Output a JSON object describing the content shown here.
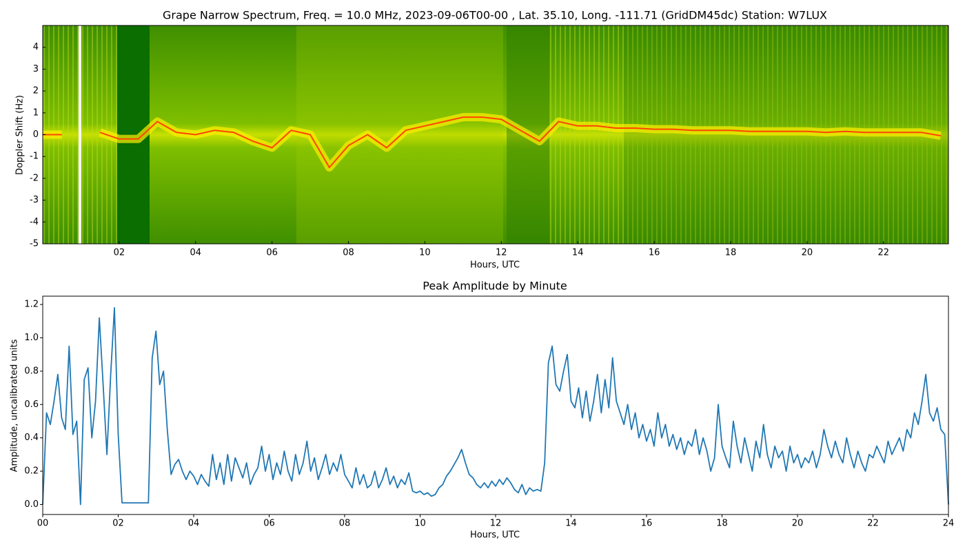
{
  "chart_data": [
    {
      "type": "spectrogram",
      "title": "Grape Narrow Spectrum, Freq. = 10.0 MHz, 2023-09-06T00-00 , Lat.  35.10, Long. -111.71 (GridDM45dc) Station: W7LUX",
      "x_label": "Hours, UTC",
      "y_label": "Doppler Shift (Hz)",
      "x": [
        0,
        0.5,
        1,
        1.5,
        2,
        2.5,
        3,
        3.5,
        4,
        4.5,
        5,
        5.5,
        6,
        6.5,
        7,
        7.5,
        8,
        8.5,
        9,
        9.5,
        10,
        10.5,
        11,
        11.5,
        12,
        12.5,
        13,
        13.5,
        14,
        14.5,
        15,
        15.5,
        16,
        16.5,
        17,
        17.5,
        18,
        18.5,
        19,
        19.5,
        20,
        20.5,
        21,
        21.5,
        22,
        22.5,
        23,
        23.5
      ],
      "values": [
        0.0,
        0.0,
        null,
        0.1,
        -0.2,
        -0.2,
        0.6,
        0.1,
        0.0,
        0.2,
        0.1,
        -0.3,
        -0.6,
        0.2,
        0.0,
        -1.5,
        -0.5,
        0.0,
        -0.6,
        0.2,
        0.4,
        0.6,
        0.8,
        0.8,
        0.7,
        0.2,
        -0.3,
        0.6,
        0.4,
        0.4,
        0.3,
        0.3,
        0.25,
        0.25,
        0.2,
        0.2,
        0.2,
        0.15,
        0.15,
        0.15,
        0.15,
        0.1,
        0.15,
        0.1,
        0.1,
        0.1,
        0.1,
        -0.05
      ],
      "color": "#ff4500",
      "xlim": [
        0,
        23.7
      ],
      "ylim": [
        -5,
        5
      ],
      "xticks": [
        {
          "value": 2,
          "label": "02"
        },
        {
          "value": 4,
          "label": "04"
        },
        {
          "value": 6,
          "label": "06"
        },
        {
          "value": 8,
          "label": "08"
        },
        {
          "value": 10,
          "label": "10"
        },
        {
          "value": 12,
          "label": "12"
        },
        {
          "value": 14,
          "label": "14"
        },
        {
          "value": 16,
          "label": "16"
        },
        {
          "value": 18,
          "label": "18"
        },
        {
          "value": 20,
          "label": "20"
        },
        {
          "value": 22,
          "label": "22"
        }
      ],
      "yticks": [
        -5,
        -4,
        -3,
        -2,
        -1,
        0,
        1,
        2,
        3,
        4
      ]
    },
    {
      "type": "line",
      "title": "Peak Amplitude by Minute",
      "x_label": "Hours, UTC",
      "y_label": "Amplitude, uncalibrated units",
      "x": [
        0,
        0.1,
        0.2,
        0.3,
        0.4,
        0.5,
        0.6,
        0.7,
        0.8,
        0.9,
        1,
        1.1,
        1.2,
        1.3,
        1.4,
        1.5,
        1.6,
        1.7,
        1.8,
        1.9,
        2,
        2.1,
        2.2,
        2.3,
        2.4,
        2.5,
        2.6,
        2.7,
        2.8,
        2.9,
        3,
        3.1,
        3.2,
        3.3,
        3.4,
        3.5,
        3.6,
        3.7,
        3.8,
        3.9,
        4,
        4.1,
        4.2,
        4.3,
        4.4,
        4.5,
        4.6,
        4.7,
        4.8,
        4.9,
        5,
        5.1,
        5.2,
        5.3,
        5.4,
        5.5,
        5.6,
        5.7,
        5.8,
        5.9,
        6,
        6.1,
        6.2,
        6.3,
        6.4,
        6.5,
        6.6,
        6.7,
        6.8,
        6.9,
        7,
        7.1,
        7.2,
        7.3,
        7.4,
        7.5,
        7.6,
        7.7,
        7.8,
        7.9,
        8,
        8.1,
        8.2,
        8.3,
        8.4,
        8.5,
        8.6,
        8.7,
        8.8,
        8.9,
        9,
        9.1,
        9.2,
        9.3,
        9.4,
        9.5,
        9.6,
        9.7,
        9.8,
        9.9,
        10,
        10.1,
        10.2,
        10.3,
        10.4,
        10.5,
        10.6,
        10.7,
        10.8,
        10.9,
        11,
        11.1,
        11.2,
        11.3,
        11.4,
        11.5,
        11.6,
        11.7,
        11.8,
        11.9,
        12,
        12.1,
        12.2,
        12.3,
        12.4,
        12.5,
        12.6,
        12.7,
        12.8,
        12.9,
        13,
        13.1,
        13.2,
        13.3,
        13.4,
        13.5,
        13.6,
        13.7,
        13.8,
        13.9,
        14,
        14.1,
        14.2,
        14.3,
        14.4,
        14.5,
        14.6,
        14.7,
        14.8,
        14.9,
        15,
        15.1,
        15.2,
        15.3,
        15.4,
        15.5,
        15.6,
        15.7,
        15.8,
        15.9,
        16,
        16.1,
        16.2,
        16.3,
        16.4,
        16.5,
        16.6,
        16.7,
        16.8,
        16.9,
        17,
        17.1,
        17.2,
        17.3,
        17.4,
        17.5,
        17.6,
        17.7,
        17.8,
        17.9,
        18,
        18.1,
        18.2,
        18.3,
        18.4,
        18.5,
        18.6,
        18.7,
        18.8,
        18.9,
        19,
        19.1,
        19.2,
        19.3,
        19.4,
        19.5,
        19.6,
        19.7,
        19.8,
        19.9,
        20,
        20.1,
        20.2,
        20.3,
        20.4,
        20.5,
        20.6,
        20.7,
        20.8,
        20.9,
        21,
        21.1,
        21.2,
        21.3,
        21.4,
        21.5,
        21.6,
        21.7,
        21.8,
        21.9,
        22,
        22.1,
        22.2,
        22.3,
        22.4,
        22.5,
        22.6,
        22.7,
        22.8,
        22.9,
        23,
        23.1,
        23.2,
        23.3,
        23.4,
        23.5,
        23.6,
        23.7,
        23.8,
        23.9,
        24
      ],
      "values": [
        0.0,
        0.55,
        0.48,
        0.62,
        0.78,
        0.52,
        0.45,
        0.95,
        0.42,
        0.5,
        0.0,
        0.75,
        0.82,
        0.4,
        0.62,
        1.12,
        0.72,
        0.3,
        0.78,
        1.18,
        0.42,
        0.01,
        0.01,
        0.01,
        0.01,
        0.01,
        0.01,
        0.01,
        0.01,
        0.88,
        1.04,
        0.72,
        0.8,
        0.45,
        0.18,
        0.24,
        0.27,
        0.2,
        0.15,
        0.2,
        0.17,
        0.12,
        0.18,
        0.14,
        0.11,
        0.3,
        0.15,
        0.25,
        0.12,
        0.3,
        0.14,
        0.28,
        0.22,
        0.16,
        0.25,
        0.12,
        0.18,
        0.22,
        0.35,
        0.2,
        0.3,
        0.15,
        0.25,
        0.18,
        0.32,
        0.2,
        0.14,
        0.3,
        0.18,
        0.25,
        0.38,
        0.2,
        0.28,
        0.15,
        0.22,
        0.3,
        0.18,
        0.25,
        0.2,
        0.3,
        0.18,
        0.14,
        0.1,
        0.22,
        0.12,
        0.18,
        0.1,
        0.12,
        0.2,
        0.1,
        0.15,
        0.22,
        0.12,
        0.17,
        0.1,
        0.15,
        0.12,
        0.19,
        0.08,
        0.07,
        0.08,
        0.06,
        0.07,
        0.05,
        0.06,
        0.1,
        0.12,
        0.17,
        0.2,
        0.24,
        0.28,
        0.33,
        0.25,
        0.18,
        0.16,
        0.12,
        0.1,
        0.13,
        0.1,
        0.14,
        0.11,
        0.15,
        0.12,
        0.16,
        0.13,
        0.09,
        0.07,
        0.12,
        0.06,
        0.1,
        0.08,
        0.09,
        0.08,
        0.25,
        0.85,
        0.95,
        0.72,
        0.68,
        0.8,
        0.9,
        0.62,
        0.58,
        0.7,
        0.52,
        0.68,
        0.5,
        0.62,
        0.78,
        0.55,
        0.75,
        0.58,
        0.88,
        0.62,
        0.55,
        0.48,
        0.6,
        0.45,
        0.55,
        0.4,
        0.48,
        0.38,
        0.45,
        0.35,
        0.55,
        0.4,
        0.48,
        0.35,
        0.42,
        0.33,
        0.4,
        0.3,
        0.38,
        0.35,
        0.45,
        0.3,
        0.4,
        0.32,
        0.2,
        0.28,
        0.6,
        0.35,
        0.28,
        0.22,
        0.5,
        0.35,
        0.25,
        0.4,
        0.3,
        0.2,
        0.38,
        0.28,
        0.48,
        0.3,
        0.22,
        0.35,
        0.28,
        0.32,
        0.2,
        0.35,
        0.25,
        0.3,
        0.22,
        0.28,
        0.25,
        0.32,
        0.22,
        0.3,
        0.45,
        0.35,
        0.28,
        0.38,
        0.3,
        0.25,
        0.4,
        0.3,
        0.22,
        0.32,
        0.25,
        0.2,
        0.3,
        0.28,
        0.35,
        0.3,
        0.25,
        0.38,
        0.3,
        0.35,
        0.4,
        0.32,
        0.45,
        0.4,
        0.55,
        0.48,
        0.62,
        0.78,
        0.55,
        0.5,
        0.58,
        0.45,
        0.42,
        0.0
      ],
      "color": "#1f77b4",
      "xlim": [
        0,
        24
      ],
      "ylim": [
        -0.06,
        1.25
      ],
      "xticks": [
        {
          "value": 0,
          "label": "00"
        },
        {
          "value": 2,
          "label": "02"
        },
        {
          "value": 4,
          "label": "04"
        },
        {
          "value": 6,
          "label": "06"
        },
        {
          "value": 8,
          "label": "08"
        },
        {
          "value": 10,
          "label": "10"
        },
        {
          "value": 12,
          "label": "12"
        },
        {
          "value": 14,
          "label": "14"
        },
        {
          "value": 16,
          "label": "16"
        },
        {
          "value": 18,
          "label": "18"
        },
        {
          "value": 20,
          "label": "20"
        },
        {
          "value": 22,
          "label": "22"
        },
        {
          "value": 24,
          "label": "24"
        }
      ],
      "yticks": [
        {
          "value": 0,
          "label": "0.0"
        },
        0.2,
        0.4,
        0.6,
        0.8,
        {
          "value": 1,
          "label": "1.0"
        },
        1.2
      ]
    }
  ]
}
